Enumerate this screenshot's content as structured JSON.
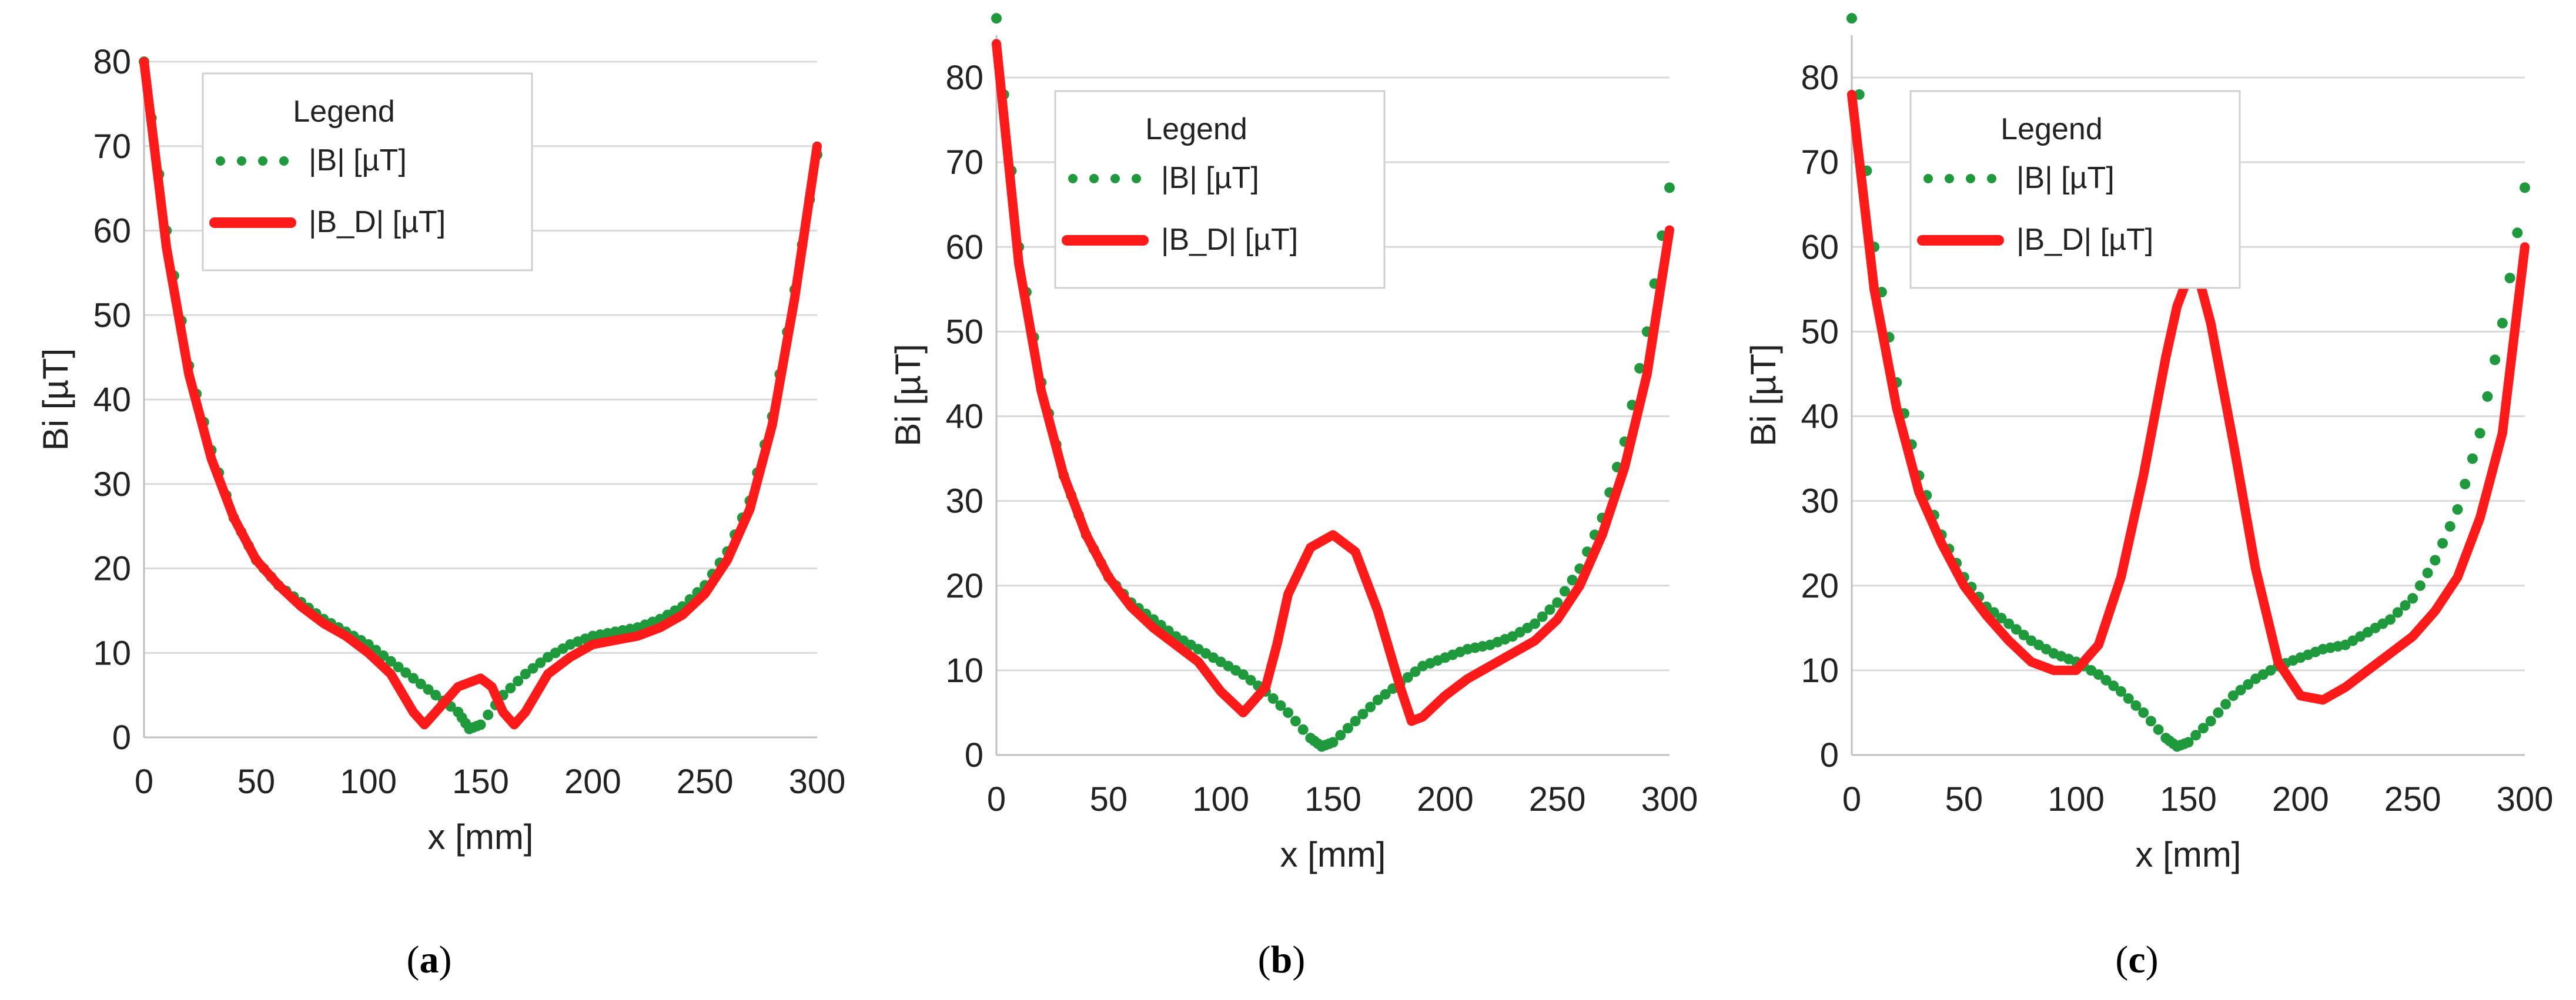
{
  "chart_data": [
    {
      "type": "line",
      "panel": "a",
      "caption": "(a)",
      "xlabel": "x [mm]",
      "ylabel": "Bi [µT]",
      "xlim": [
        0,
        300
      ],
      "ylim": [
        0,
        80
      ],
      "xticks": [
        0,
        50,
        100,
        150,
        200,
        250,
        300
      ],
      "yticks": [
        0,
        10,
        20,
        30,
        40,
        50,
        60,
        70,
        80
      ],
      "grid": true,
      "legend": {
        "title": "Legend",
        "position": "top-left"
      },
      "series": [
        {
          "name": "|B| [µT]",
          "style": "dotted",
          "color": "#1e9a3c",
          "x": [
            0,
            10,
            20,
            30,
            40,
            50,
            60,
            70,
            80,
            90,
            100,
            110,
            120,
            130,
            140,
            145,
            150,
            160,
            170,
            180,
            190,
            200,
            210,
            220,
            230,
            240,
            250,
            260,
            270,
            280,
            290,
            300
          ],
          "y": [
            80,
            60,
            44,
            34,
            26,
            21,
            18,
            16,
            14,
            12.5,
            11,
            9,
            7,
            5,
            3,
            1,
            1.5,
            5,
            7.5,
            9.5,
            11,
            12,
            12.5,
            13,
            14,
            15.5,
            18,
            22,
            28,
            38,
            53,
            69
          ]
        },
        {
          "name": "|B_D| [µT]",
          "style": "solid",
          "color": "#ff1a1a",
          "x": [
            0,
            10,
            20,
            30,
            40,
            50,
            60,
            70,
            80,
            90,
            100,
            110,
            120,
            125,
            130,
            140,
            150,
            155,
            160,
            165,
            170,
            180,
            190,
            200,
            210,
            220,
            230,
            240,
            250,
            260,
            270,
            280,
            290,
            300
          ],
          "y": [
            80,
            58,
            43,
            33,
            26,
            21,
            18,
            15.5,
            13.5,
            12,
            10,
            7.5,
            3,
            1.5,
            3,
            6,
            7,
            6,
            3,
            1.5,
            3,
            7.5,
            9.5,
            11,
            11.5,
            12,
            13,
            14.5,
            17,
            21,
            27,
            37,
            52,
            70
          ]
        }
      ]
    },
    {
      "type": "line",
      "panel": "b",
      "caption": "(b)",
      "xlabel": "x [mm]",
      "ylabel": "Bi [µT]",
      "xlim": [
        0,
        300
      ],
      "ylim": [
        0,
        85
      ],
      "xticks": [
        0,
        50,
        100,
        150,
        200,
        250,
        300
      ],
      "yticks": [
        0,
        10,
        20,
        30,
        40,
        50,
        60,
        70,
        80
      ],
      "grid": true,
      "legend": {
        "title": "Legend",
        "position": "top-center"
      },
      "series": [
        {
          "name": "|B| [µT]",
          "style": "dotted",
          "color": "#1e9a3c",
          "x": [
            0,
            10,
            20,
            30,
            40,
            50,
            60,
            70,
            80,
            90,
            100,
            110,
            120,
            130,
            140,
            145,
            150,
            160,
            170,
            180,
            190,
            200,
            210,
            220,
            230,
            240,
            250,
            260,
            270,
            280,
            290,
            300
          ],
          "y": [
            87,
            60,
            44,
            33,
            26,
            21,
            18,
            16,
            14,
            12.5,
            11,
            9.5,
            7.5,
            5,
            2,
            1,
            1.5,
            4,
            6.5,
            8.5,
            10.5,
            11.5,
            12.5,
            13,
            14,
            15.5,
            18,
            22,
            28,
            37,
            50,
            67
          ]
        },
        {
          "name": "|B_D| [µT]",
          "style": "solid",
          "color": "#ff1a1a",
          "x": [
            0,
            10,
            20,
            30,
            40,
            50,
            60,
            70,
            80,
            90,
            100,
            110,
            120,
            125,
            130,
            140,
            150,
            160,
            170,
            180,
            185,
            190,
            200,
            210,
            220,
            230,
            240,
            250,
            260,
            270,
            280,
            290,
            300
          ],
          "y": [
            84,
            58,
            43,
            33,
            26,
            21,
            17.5,
            15,
            13,
            11,
            7.5,
            5,
            8,
            13,
            19,
            24.5,
            26,
            24,
            17,
            8,
            4,
            4.5,
            7,
            9,
            10.5,
            12,
            13.5,
            16,
            20,
            26,
            34,
            45,
            62
          ]
        }
      ]
    },
    {
      "type": "line",
      "panel": "c",
      "caption": "(c)",
      "xlabel": "x [mm]",
      "ylabel": "Bi [µT]",
      "xlim": [
        0,
        300
      ],
      "ylim": [
        0,
        85
      ],
      "xticks": [
        0,
        50,
        100,
        150,
        200,
        250,
        300
      ],
      "yticks": [
        0,
        10,
        20,
        30,
        40,
        50,
        60,
        70,
        80
      ],
      "grid": true,
      "legend": {
        "title": "Legend",
        "position": "top-center"
      },
      "series": [
        {
          "name": "|B| [µT]",
          "style": "dotted",
          "color": "#1e9a3c",
          "x": [
            0,
            10,
            20,
            30,
            40,
            50,
            60,
            70,
            80,
            90,
            100,
            110,
            120,
            130,
            140,
            145,
            150,
            160,
            170,
            180,
            190,
            200,
            210,
            220,
            230,
            240,
            250,
            260,
            270,
            280,
            290,
            300
          ],
          "y": [
            87,
            60,
            44,
            33,
            26,
            21,
            17.5,
            15.5,
            13.5,
            12,
            11,
            9.5,
            7.5,
            5,
            2,
            1,
            1.5,
            4,
            7,
            9,
            10.5,
            11.5,
            12.5,
            13,
            14.5,
            16,
            18.5,
            23,
            29,
            38,
            51,
            67
          ]
        },
        {
          "name": "|B_D| [µT]",
          "style": "solid",
          "color": "#ff1a1a",
          "x": [
            0,
            10,
            20,
            30,
            40,
            50,
            60,
            70,
            80,
            90,
            100,
            110,
            120,
            130,
            140,
            145,
            150,
            155,
            160,
            170,
            180,
            190,
            200,
            210,
            220,
            230,
            240,
            250,
            260,
            270,
            280,
            290,
            300
          ],
          "y": [
            78,
            55,
            41,
            31,
            25,
            20,
            16.5,
            13.5,
            11,
            10,
            10,
            13,
            21,
            33,
            47,
            53,
            56.5,
            56,
            51,
            37,
            22,
            11,
            7,
            6.5,
            8,
            10,
            12,
            14,
            17,
            21,
            28,
            38,
            60
          ]
        }
      ]
    }
  ]
}
